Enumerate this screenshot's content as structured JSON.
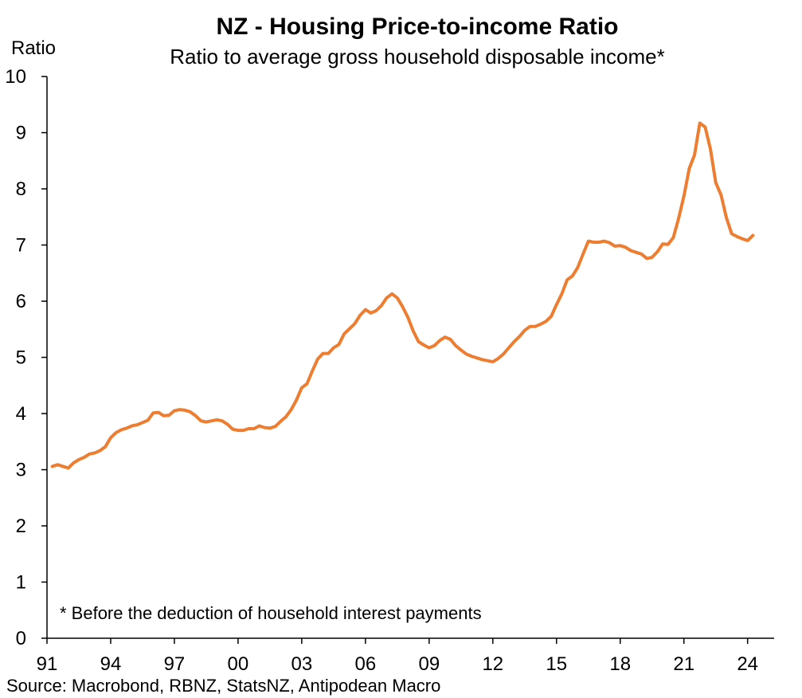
{
  "chart_data": {
    "type": "line",
    "title": "NZ - Housing Price-to-income Ratio",
    "subtitle": "Ratio to average gross household disposable income*",
    "ylabel": "Ratio",
    "xlabel": "",
    "ylim": [
      0,
      10
    ],
    "xlim": [
      1991,
      2025.25
    ],
    "yticks": [
      "0",
      "1",
      "2",
      "3",
      "4",
      "5",
      "6",
      "7",
      "8",
      "9",
      "10"
    ],
    "xticks": [
      {
        "value": 1991,
        "label": "91"
      },
      {
        "value": 1994,
        "label": "94"
      },
      {
        "value": 1997,
        "label": "97"
      },
      {
        "value": 2000,
        "label": "00"
      },
      {
        "value": 2003,
        "label": "03"
      },
      {
        "value": 2006,
        "label": "06"
      },
      {
        "value": 2009,
        "label": "09"
      },
      {
        "value": 2012,
        "label": "12"
      },
      {
        "value": 2015,
        "label": "15"
      },
      {
        "value": 2018,
        "label": "18"
      },
      {
        "value": 2021,
        "label": "21"
      },
      {
        "value": 2024,
        "label": "24"
      }
    ],
    "grid": false,
    "color": "#ED7D31",
    "annotation": "* Before the deduction of household interest payments",
    "source": "Source: Macrobond, RBNZ, StatsNZ, Antipodean Macro",
    "series": [
      {
        "x": [
          1991.25,
          1991.5,
          1991.75,
          1992.0,
          1992.25,
          1992.5,
          1992.75,
          1993.0,
          1993.25,
          1993.5,
          1993.75,
          1994.0,
          1994.25,
          1994.5,
          1994.75,
          1995.0,
          1995.25,
          1995.5,
          1995.75,
          1996.0,
          1996.25,
          1996.5,
          1996.75,
          1997.0,
          1997.25,
          1997.5,
          1997.75,
          1998.0,
          1998.25,
          1998.5,
          1998.75,
          1999.0,
          1999.25,
          1999.5,
          1999.75,
          2000.0,
          2000.25,
          2000.5,
          2000.75,
          2001.0,
          2001.25,
          2001.5,
          2001.75,
          2002.0,
          2002.25,
          2002.5,
          2002.75,
          2003.0,
          2003.25,
          2003.5,
          2003.75,
          2004.0,
          2004.25,
          2004.5,
          2004.75,
          2005.0,
          2005.25,
          2005.5,
          2005.75,
          2006.0,
          2006.25,
          2006.5,
          2006.75,
          2007.0,
          2007.25,
          2007.5,
          2007.75,
          2008.0,
          2008.25,
          2008.5,
          2008.75,
          2009.0,
          2009.25,
          2009.5,
          2009.75,
          2010.0,
          2010.25,
          2010.5,
          2010.75,
          2011.0,
          2011.25,
          2011.5,
          2011.75,
          2012.0,
          2012.25,
          2012.5,
          2012.75,
          2013.0,
          2013.25,
          2013.5,
          2013.75,
          2014.0,
          2014.25,
          2014.5,
          2014.75,
          2015.0,
          2015.25,
          2015.5,
          2015.75,
          2016.0,
          2016.25,
          2016.5,
          2016.75,
          2017.0,
          2017.25,
          2017.5,
          2017.75,
          2018.0,
          2018.25,
          2018.5,
          2018.75,
          2019.0,
          2019.25,
          2019.5,
          2019.75,
          2020.0,
          2020.25,
          2020.5,
          2020.75,
          2021.0,
          2021.25,
          2021.5,
          2021.75,
          2022.0,
          2022.25,
          2022.5,
          2022.75,
          2023.0,
          2023.25,
          2023.5,
          2023.75,
          2024.0,
          2024.25
        ],
        "values": [
          3.06,
          3.09,
          3.06,
          3.03,
          3.12,
          3.18,
          3.22,
          3.28,
          3.3,
          3.34,
          3.41,
          3.57,
          3.66,
          3.71,
          3.74,
          3.78,
          3.8,
          3.84,
          3.88,
          4.01,
          4.02,
          3.96,
          3.97,
          4.05,
          4.07,
          4.06,
          4.03,
          3.96,
          3.87,
          3.85,
          3.87,
          3.89,
          3.87,
          3.81,
          3.72,
          3.7,
          3.7,
          3.73,
          3.73,
          3.78,
          3.75,
          3.74,
          3.77,
          3.86,
          3.94,
          4.07,
          4.24,
          4.46,
          4.53,
          4.76,
          4.97,
          5.07,
          5.07,
          5.17,
          5.23,
          5.42,
          5.51,
          5.6,
          5.75,
          5.85,
          5.79,
          5.83,
          5.92,
          6.06,
          6.13,
          6.06,
          5.9,
          5.71,
          5.47,
          5.28,
          5.22,
          5.17,
          5.21,
          5.3,
          5.36,
          5.32,
          5.21,
          5.13,
          5.06,
          5.02,
          4.99,
          4.96,
          4.94,
          4.92,
          4.98,
          5.06,
          5.17,
          5.28,
          5.37,
          5.48,
          5.55,
          5.55,
          5.59,
          5.64,
          5.73,
          5.94,
          6.13,
          6.38,
          6.45,
          6.6,
          6.84,
          7.07,
          7.05,
          7.05,
          7.07,
          7.04,
          6.98,
          6.99,
          6.96,
          6.9,
          6.87,
          6.84,
          6.76,
          6.78,
          6.88,
          7.02,
          7.01,
          7.13,
          7.47,
          7.87,
          8.36,
          8.6,
          9.17,
          9.1,
          8.71,
          8.11,
          7.89,
          7.49,
          7.2,
          7.15,
          7.11,
          7.08,
          7.17
        ]
      }
    ]
  }
}
